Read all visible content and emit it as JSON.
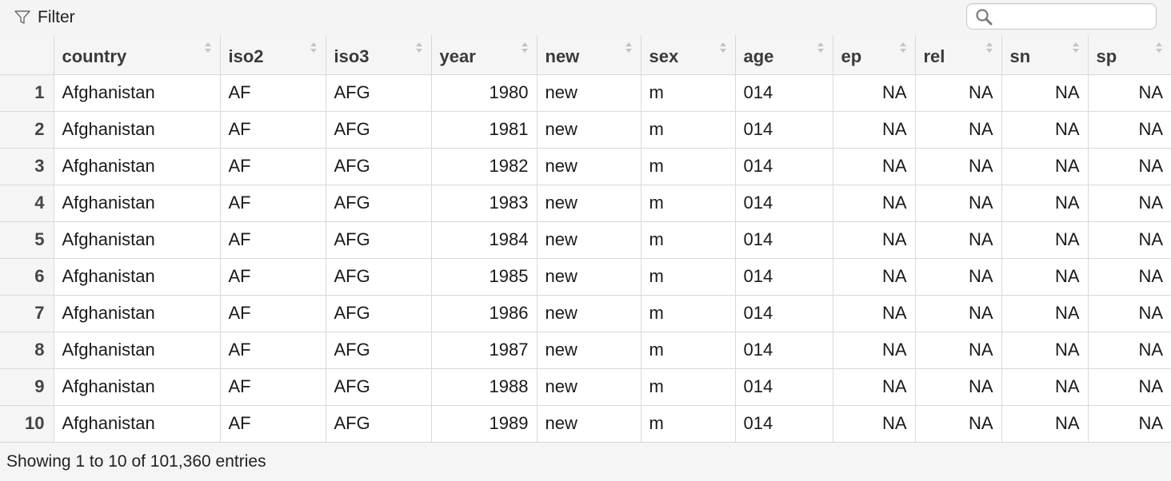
{
  "toolbar": {
    "filter_label": "Filter",
    "filter_icon": "funnel-icon",
    "search_icon": "search-icon",
    "search_value": "",
    "search_placeholder": ""
  },
  "table": {
    "columns": [
      "",
      "country",
      "iso2",
      "iso3",
      "year",
      "new",
      "sex",
      "age",
      "ep",
      "rel",
      "sn",
      "sp"
    ],
    "rows": [
      [
        "1",
        "Afghanistan",
        "AF",
        "AFG",
        "1980",
        "new",
        "m",
        "014",
        "NA",
        "NA",
        "NA",
        "NA"
      ],
      [
        "2",
        "Afghanistan",
        "AF",
        "AFG",
        "1981",
        "new",
        "m",
        "014",
        "NA",
        "NA",
        "NA",
        "NA"
      ],
      [
        "3",
        "Afghanistan",
        "AF",
        "AFG",
        "1982",
        "new",
        "m",
        "014",
        "NA",
        "NA",
        "NA",
        "NA"
      ],
      [
        "4",
        "Afghanistan",
        "AF",
        "AFG",
        "1983",
        "new",
        "m",
        "014",
        "NA",
        "NA",
        "NA",
        "NA"
      ],
      [
        "5",
        "Afghanistan",
        "AF",
        "AFG",
        "1984",
        "new",
        "m",
        "014",
        "NA",
        "NA",
        "NA",
        "NA"
      ],
      [
        "6",
        "Afghanistan",
        "AF",
        "AFG",
        "1985",
        "new",
        "m",
        "014",
        "NA",
        "NA",
        "NA",
        "NA"
      ],
      [
        "7",
        "Afghanistan",
        "AF",
        "AFG",
        "1986",
        "new",
        "m",
        "014",
        "NA",
        "NA",
        "NA",
        "NA"
      ],
      [
        "8",
        "Afghanistan",
        "AF",
        "AFG",
        "1987",
        "new",
        "m",
        "014",
        "NA",
        "NA",
        "NA",
        "NA"
      ],
      [
        "9",
        "Afghanistan",
        "AF",
        "AFG",
        "1988",
        "new",
        "m",
        "014",
        "NA",
        "NA",
        "NA",
        "NA"
      ],
      [
        "10",
        "Afghanistan",
        "AF",
        "AFG",
        "1989",
        "new",
        "m",
        "014",
        "NA",
        "NA",
        "NA",
        "NA"
      ]
    ]
  },
  "footer": {
    "status_text": "Showing 1 to 10 of 101,360 entries"
  },
  "colors": {
    "header_bg": "#f5f5f5",
    "border": "#d9d9d9"
  }
}
